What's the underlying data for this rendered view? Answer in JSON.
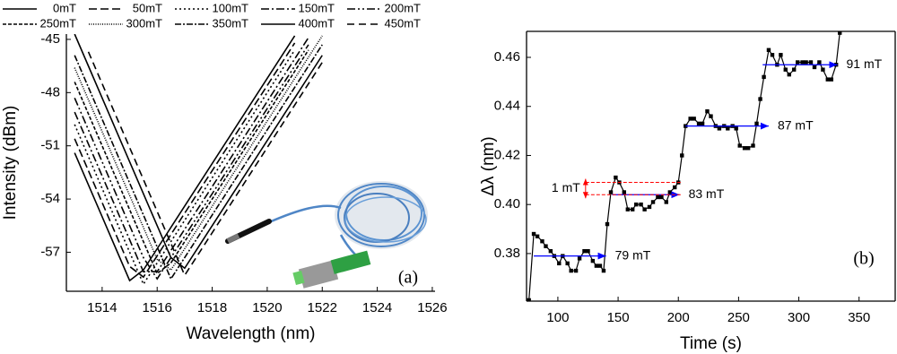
{
  "chart_data": [
    {
      "type": "line",
      "xlabel": "Wavelength (nm)",
      "ylabel": "Intensity (dBm)",
      "panel_label": "(a)",
      "xlim": [
        1512.7,
        1526.1
      ],
      "ylim": [
        -59.2,
        -44.7
      ],
      "xticks": [
        1514,
        1516,
        1518,
        1520,
        1522,
        1524,
        1526
      ],
      "yticks": [
        -45,
        -48,
        -51,
        -54,
        -57
      ],
      "legend": "top",
      "color": "#000000",
      "x": [
        1513,
        1513.5,
        1514,
        1514.5,
        1515,
        1515.5,
        1516,
        1516.5,
        1517,
        1517.5,
        1518,
        1518.5,
        1519,
        1519.5,
        1520,
        1520.5,
        1521,
        1521.5,
        1522
      ],
      "series": [
        {
          "name": "0mT",
          "dash": "none",
          "values": [
            -51.4,
            -53.2,
            -55.0,
            -56.8,
            -58.6,
            -58.0,
            -56.8,
            -55.6,
            -54.4,
            -53.2,
            -52.0,
            -50.8,
            -49.6,
            -48.4,
            -47.2,
            -46.0,
            -44.8,
            null,
            null
          ]
        },
        {
          "name": "50mT",
          "dash": "9,4",
          "values": [
            -50.6,
            -52.4,
            -54.2,
            -56.0,
            -57.8,
            -58.4,
            -57.2,
            -56.0,
            -54.8,
            -53.6,
            -52.4,
            -51.2,
            -50.0,
            -48.8,
            -47.6,
            -46.4,
            -45.2,
            null,
            null
          ]
        },
        {
          "name": "100mT",
          "dash": "2,3",
          "values": [
            -49.8,
            -51.6,
            -53.4,
            -55.2,
            -57.0,
            -58.8,
            -57.6,
            -56.4,
            -55.2,
            -54.0,
            -52.8,
            -51.6,
            -50.4,
            -49.2,
            -48.0,
            -46.8,
            -45.6,
            null,
            null
          ]
        },
        {
          "name": "150mT",
          "dash": "9,3,2,3",
          "values": [
            -49.1,
            -50.9,
            -52.7,
            -54.5,
            -56.3,
            -58.1,
            -58.1,
            -56.9,
            -55.7,
            -54.5,
            -53.3,
            -52.1,
            -50.9,
            -49.7,
            -48.5,
            -47.3,
            -46.1,
            -44.9,
            null
          ]
        },
        {
          "name": "200mT",
          "dash": "9,3,2,3,2,3",
          "values": [
            -48.3,
            -50.1,
            -51.9,
            -53.7,
            -55.5,
            -57.3,
            -58.5,
            -57.3,
            -56.1,
            -54.9,
            -53.7,
            -52.5,
            -51.3,
            -50.1,
            -48.9,
            -47.7,
            -46.5,
            -45.3,
            null
          ]
        },
        {
          "name": "250mT",
          "dash": "4,2",
          "values": [
            -47.4,
            -49.2,
            -51.0,
            -52.8,
            -54.6,
            -56.4,
            -58.2,
            -57.6,
            -56.4,
            -55.2,
            -54.0,
            -52.8,
            -51.6,
            -50.4,
            -49.2,
            -48.0,
            -46.8,
            -45.6,
            null
          ]
        },
        {
          "name": "300mT",
          "dash": "1,1.5",
          "values": [
            -46.6,
            -48.4,
            -50.2,
            -52.0,
            -53.8,
            -55.6,
            -57.4,
            -58.0,
            -56.8,
            -55.6,
            -54.4,
            -53.2,
            -52.0,
            -50.8,
            -49.6,
            -48.4,
            -47.2,
            -46.0,
            -44.8
          ]
        },
        {
          "name": "350mT",
          "dash": "7,2,2,2",
          "values": [
            -45.9,
            -47.7,
            -49.5,
            -51.3,
            -53.1,
            -54.9,
            -56.7,
            -58.5,
            -57.3,
            -56.1,
            -54.9,
            -53.7,
            -52.5,
            -51.3,
            -50.1,
            -48.9,
            -47.7,
            -46.5,
            -45.3
          ]
        },
        {
          "name": "400mT",
          "dash": "none",
          "values": [
            -44.7,
            -46.5,
            -48.3,
            -50.1,
            -51.9,
            -53.7,
            -55.5,
            -57.3,
            -57.9,
            -56.7,
            -55.5,
            -54.3,
            -53.1,
            -51.9,
            -50.7,
            -49.5,
            -48.3,
            -47.1,
            -45.9
          ]
        },
        {
          "name": "450mT",
          "dash": "8,5",
          "values": [
            null,
            -45.7,
            -47.5,
            -49.3,
            -51.1,
            -52.9,
            -54.7,
            -56.5,
            -58.3,
            -57.1,
            -55.9,
            -54.7,
            -53.5,
            -52.3,
            -51.1,
            -49.9,
            -48.7,
            -47.5,
            -46.3
          ]
        }
      ]
    },
    {
      "type": "line",
      "xlabel": "Time (s)",
      "ylabel": "Δλ (nm)",
      "panel_label": "(b)",
      "xlim": [
        74,
        380
      ],
      "ylim": [
        0.3606,
        0.4706
      ],
      "xticks": [
        100,
        150,
        200,
        250,
        300,
        350
      ],
      "yticks": [
        0.38,
        {
          "value": 0.4,
          "label": "0.40"
        },
        0.42,
        0.44,
        0.46
      ],
      "color": "#000000",
      "marker": "square",
      "x": [
        76,
        80,
        83,
        87,
        90,
        94,
        97,
        101,
        104,
        108,
        111,
        115,
        118,
        122,
        125,
        129,
        132,
        135,
        138,
        141,
        144,
        148,
        151,
        155,
        158,
        162,
        165,
        169,
        172,
        176,
        179,
        183,
        186,
        190,
        193,
        197,
        200,
        203,
        206,
        210,
        213,
        217,
        220,
        224,
        227,
        231,
        234,
        238,
        241,
        245,
        248,
        251,
        255,
        258,
        262,
        265,
        268,
        271,
        275,
        278,
        282,
        285,
        289,
        292,
        296,
        299,
        303,
        306,
        310,
        313,
        317,
        320,
        324,
        327,
        331,
        334
      ],
      "values": [
        0.361,
        0.388,
        0.387,
        0.385,
        0.383,
        0.381,
        0.379,
        0.376,
        0.379,
        0.376,
        0.373,
        0.373,
        0.378,
        0.381,
        0.381,
        0.377,
        0.375,
        0.375,
        0.373,
        0.392,
        0.405,
        0.411,
        0.409,
        0.405,
        0.398,
        0.398,
        0.4,
        0.4,
        0.398,
        0.399,
        0.401,
        0.403,
        0.403,
        0.401,
        0.405,
        0.407,
        0.409,
        0.42,
        0.432,
        0.435,
        0.435,
        0.433,
        0.433,
        0.438,
        0.436,
        0.432,
        0.431,
        0.432,
        0.431,
        0.432,
        0.431,
        0.424,
        0.423,
        0.423,
        0.424,
        0.433,
        0.443,
        0.452,
        0.463,
        0.461,
        0.457,
        0.461,
        0.455,
        0.453,
        0.455,
        0.458,
        0.458,
        0.458,
        0.458,
        0.456,
        0.458,
        0.455,
        0.451,
        0.451,
        0.457,
        0.47
      ],
      "annotations": [
        {
          "text": "79 mT",
          "y": 0.379,
          "x": [
            80,
            140
          ],
          "color": "#0000ff"
        },
        {
          "text": "83 mT",
          "y": 0.404,
          "x": [
            145,
            201
          ],
          "color": "#0000ff"
        },
        {
          "text": "87 mT",
          "y": 0.432,
          "x": [
            206,
            275
          ],
          "color": "#0000ff"
        },
        {
          "text": "91 mT",
          "y": 0.457,
          "x": [
            270,
            332
          ],
          "color": "#0000ff"
        }
      ],
      "bracket": {
        "text": "1 mT",
        "y": [
          0.404,
          0.409
        ],
        "x": [
          123,
          203
        ],
        "color": "#ff0000"
      }
    }
  ]
}
